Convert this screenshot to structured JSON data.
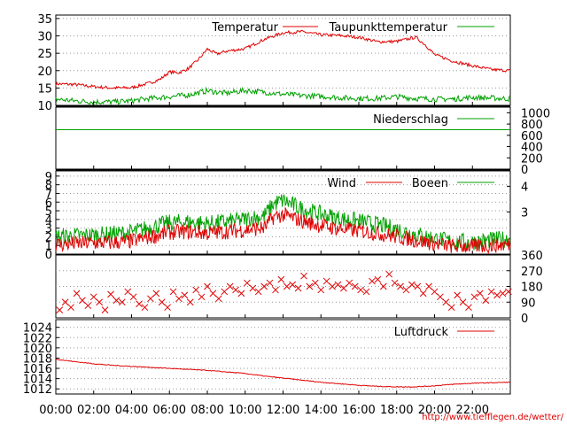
{
  "chart_data": [
    {
      "panel": "temperature",
      "type": "line",
      "y_ticks": [
        10,
        15,
        20,
        25,
        30,
        35
      ],
      "ylim": [
        10,
        36
      ],
      "grid": true,
      "legend_position": "top-right",
      "series": [
        {
          "name": "Temperatur",
          "color": "#e00000",
          "x_hours": [
            0,
            1,
            2,
            3,
            4,
            5,
            5.5,
            6,
            6.5,
            7,
            7.5,
            8,
            8.5,
            9,
            10,
            11,
            12,
            13,
            14,
            15,
            16,
            17,
            18,
            19,
            19.5,
            20,
            21,
            22,
            23,
            24
          ],
          "values": [
            16.2,
            16.0,
            15.4,
            15.0,
            15.1,
            16.5,
            17.5,
            19.6,
            19.4,
            20.6,
            23.0,
            26.2,
            24.8,
            25.6,
            26.3,
            29.0,
            30.9,
            31.2,
            30.3,
            30.1,
            29.6,
            28.3,
            28.4,
            29.6,
            27.5,
            24.6,
            22.7,
            21.4,
            20.3,
            20.0
          ]
        },
        {
          "name": "Taupunkttemperatur",
          "color": "#00a000",
          "x_hours": [
            0,
            1,
            2,
            3,
            4,
            5,
            6,
            7,
            8,
            9,
            10,
            11,
            12,
            13,
            14,
            15,
            16,
            17,
            18,
            19,
            20,
            21,
            22,
            23,
            24
          ],
          "values": [
            11.8,
            11.3,
            11.0,
            11.0,
            11.3,
            12.0,
            12.5,
            13.0,
            14.2,
            13.5,
            14.3,
            13.8,
            13.2,
            12.8,
            12.6,
            12.2,
            12.0,
            12.0,
            12.5,
            12.0,
            11.8,
            11.8,
            12.3,
            12.1,
            11.9
          ]
        }
      ]
    },
    {
      "panel": "precipitation",
      "type": "line",
      "y_ticks": [
        0,
        200,
        400,
        600,
        800,
        1000
      ],
      "ylim": [
        0,
        1100
      ],
      "grid": false,
      "legend_position": "top-right",
      "series": [
        {
          "name": "Niederschlag",
          "color": "#00a000",
          "x_hours": [
            0,
            24
          ],
          "values": [
            700,
            700
          ]
        }
      ]
    },
    {
      "panel": "wind",
      "type": "line",
      "y_ticks_left": [
        0,
        1,
        2,
        3,
        4,
        5,
        6,
        7,
        8,
        9
      ],
      "y_ticks_right": [
        3,
        4
      ],
      "ylim": [
        0,
        9.6
      ],
      "grid": true,
      "legend_position": "top-right",
      "series": [
        {
          "name": "Wind",
          "color": "#e00000",
          "x_hours": [
            0,
            1,
            2,
            3,
            4,
            5,
            6,
            7,
            8,
            9,
            10,
            11,
            11.5,
            12,
            12.5,
            13,
            14,
            15,
            16,
            17,
            18,
            19,
            20,
            21,
            22,
            23,
            24
          ],
          "values": [
            1.1,
            1.2,
            1.3,
            1.3,
            1.5,
            2.0,
            2.5,
            2.6,
            2.4,
            2.6,
            2.8,
            3.0,
            4.3,
            4.5,
            4.2,
            3.8,
            3.3,
            2.9,
            2.7,
            2.4,
            2.0,
            1.6,
            1.2,
            0.9,
            0.9,
            1.0,
            1.1
          ]
        },
        {
          "name": "Boeen",
          "color": "#00a000",
          "x_hours": [
            0,
            1,
            2,
            3,
            4,
            5,
            6,
            7,
            8,
            9,
            10,
            11,
            11.5,
            12,
            12.5,
            13,
            14,
            15,
            16,
            17,
            18,
            19,
            20,
            21,
            22,
            23,
            24
          ],
          "values": [
            2.0,
            2.1,
            2.2,
            2.3,
            2.5,
            3.1,
            3.6,
            3.7,
            3.5,
            3.7,
            4.0,
            4.4,
            5.8,
            6.2,
            5.7,
            5.2,
            4.6,
            4.1,
            3.8,
            3.4,
            2.9,
            2.3,
            1.8,
            1.4,
            1.4,
            1.6,
            1.8
          ]
        }
      ]
    },
    {
      "panel": "wind_direction",
      "type": "scatter",
      "y_ticks": [
        0,
        90,
        180,
        270,
        360
      ],
      "ylim": [
        0,
        360
      ],
      "grid": true,
      "series": [
        {
          "color": "#e00000",
          "x_hours": [
            0.2,
            0.5,
            0.8,
            1.1,
            1.4,
            1.7,
            2.0,
            2.3,
            2.6,
            2.9,
            3.2,
            3.5,
            3.8,
            4.1,
            4.4,
            4.7,
            5.0,
            5.3,
            5.6,
            5.9,
            6.2,
            6.5,
            6.8,
            7.1,
            7.4,
            7.7,
            8.0,
            8.3,
            8.6,
            8.9,
            9.2,
            9.5,
            9.8,
            10.1,
            10.4,
            10.7,
            11.0,
            11.3,
            11.6,
            11.9,
            12.2,
            12.5,
            12.8,
            13.1,
            13.4,
            13.7,
            14.0,
            14.3,
            14.6,
            14.9,
            15.2,
            15.5,
            15.8,
            16.1,
            16.4,
            16.7,
            17.0,
            17.3,
            17.6,
            17.9,
            18.2,
            18.5,
            18.8,
            19.1,
            19.4,
            19.7,
            20.0,
            20.3,
            20.6,
            20.9,
            21.2,
            21.5,
            21.8,
            22.1,
            22.4,
            22.7,
            23.0,
            23.3,
            23.6,
            23.9
          ],
          "values": [
            45,
            90,
            60,
            140,
            100,
            70,
            120,
            90,
            45,
            135,
            100,
            90,
            150,
            120,
            80,
            60,
            110,
            140,
            90,
            60,
            150,
            110,
            130,
            90,
            160,
            120,
            180,
            140,
            110,
            150,
            180,
            160,
            140,
            200,
            170,
            150,
            180,
            200,
            160,
            220,
            180,
            190,
            170,
            240,
            180,
            200,
            160,
            210,
            180,
            190,
            170,
            200,
            180,
            160,
            150,
            210,
            220,
            180,
            250,
            200,
            180,
            160,
            190,
            180,
            140,
            180,
            150,
            120,
            90,
            60,
            130,
            90,
            60,
            120,
            140,
            100,
            150,
            130,
            140,
            150
          ]
        }
      ]
    },
    {
      "panel": "pressure",
      "type": "line",
      "y_ticks": [
        1012,
        1014,
        1016,
        1018,
        1020,
        1022,
        1024
      ],
      "ylim": [
        1011,
        1025.5
      ],
      "grid": true,
      "legend_position": "top-right",
      "series": [
        {
          "name": "Luftdruck",
          "color": "#e00000",
          "x_hours": [
            0,
            1,
            2,
            3,
            4,
            5,
            6,
            7,
            8,
            9,
            10,
            11,
            12,
            13,
            14,
            15,
            16,
            17,
            18,
            19,
            20,
            21,
            22,
            23,
            24
          ],
          "values": [
            1017.8,
            1017.3,
            1016.9,
            1016.6,
            1016.4,
            1016.2,
            1016.0,
            1015.8,
            1015.6,
            1015.3,
            1015.0,
            1014.5,
            1014.1,
            1013.7,
            1013.3,
            1013.0,
            1012.7,
            1012.5,
            1012.4,
            1012.4,
            1012.6,
            1012.9,
            1013.1,
            1013.2,
            1013.3
          ]
        }
      ]
    }
  ],
  "x_axis": {
    "tick_labels": [
      "00:00",
      "02:00",
      "04:00",
      "06:00",
      "08:00",
      "10:00",
      "12:00",
      "14:00",
      "16:00",
      "18:00",
      "20:00",
      "22:00"
    ]
  },
  "credit": "http://www.tiefflegen.de/wetter/"
}
